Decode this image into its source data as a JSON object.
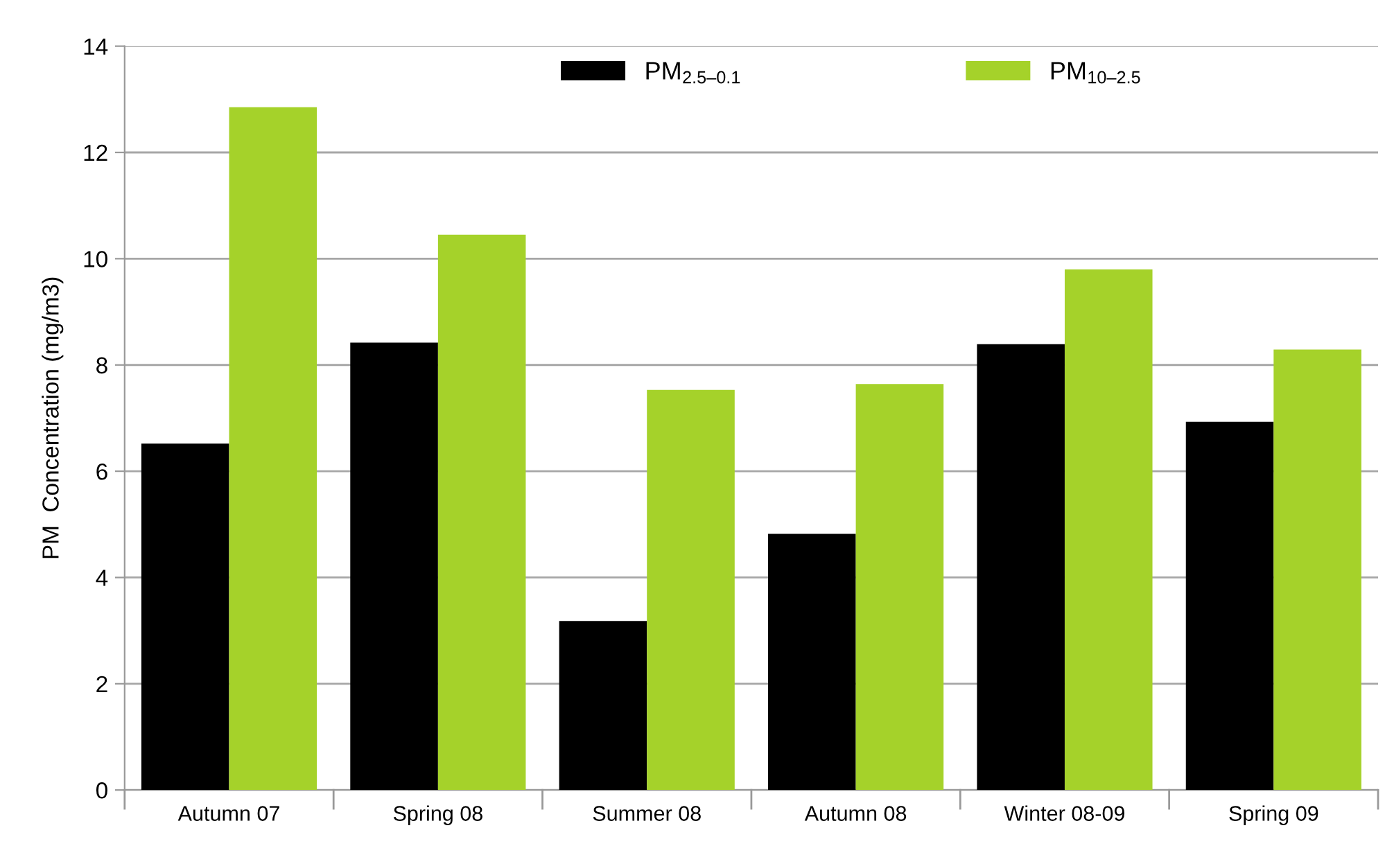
{
  "chart_data": {
    "type": "bar",
    "ylabel": "PM  Concentration (mg/m3)",
    "categories": [
      "Autumn 07",
      "Spring 08",
      "Summer 08",
      "Autumn 08",
      "Winter 08-09",
      "Spring 09"
    ],
    "series": [
      {
        "name": "PM$_{2.5–0.1}$",
        "color": "#000000",
        "values": [
          6.52,
          8.42,
          3.18,
          4.82,
          8.39,
          6.93
        ]
      },
      {
        "name": "PM$_{10–2.5}$",
        "color": "#a5d22a",
        "values": [
          12.85,
          10.45,
          7.53,
          7.64,
          9.8,
          8.29
        ]
      }
    ],
    "ylim": [
      0,
      14
    ],
    "yticks": [
      0,
      2,
      4,
      6,
      8,
      10,
      12,
      14
    ],
    "grid": "y",
    "legend": "top"
  }
}
